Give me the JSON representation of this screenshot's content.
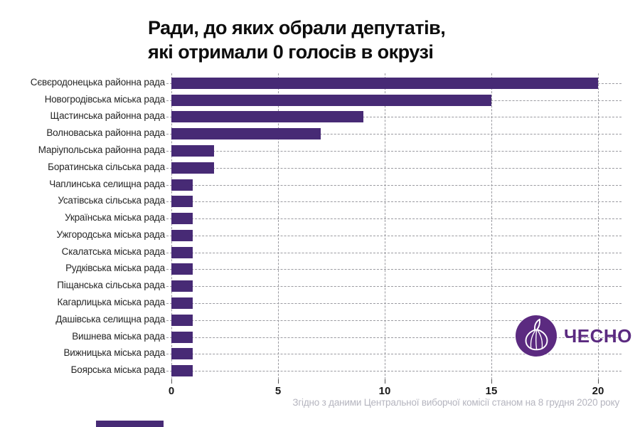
{
  "title": {
    "line1": "Ради, до яких обрали депутатів,",
    "line2": "які отримали 0 голосів в окрузі"
  },
  "chart_data": {
    "type": "bar",
    "orientation": "horizontal",
    "title": "Ради, до яких обрали депутатів, які отримали 0 голосів в окрузі",
    "categories": [
      "Сєвєродонецька районна рада",
      "Новогродівська міська рада",
      "Щастинська районна рада",
      "Волноваська районна рада",
      "Маріупольська районна рада",
      "Боратинська сільська рада",
      "Чаплинська селищна рада",
      "Усатівська сільська рада",
      "Українська міська рада",
      "Ужгородська міська рада",
      "Скалатська міська рада",
      "Рудківська міська рада",
      "Піщанська сільська рада",
      "Кагарлицька міська рада",
      "Дашівська селищна рада",
      "Вишнева міська рада",
      "Вижницька міська рада",
      "Боярська міська рада"
    ],
    "values": [
      20,
      15,
      9,
      7,
      2,
      2,
      1,
      1,
      1,
      1,
      1,
      1,
      1,
      1,
      1,
      1,
      1,
      1
    ],
    "xlim": [
      0,
      20
    ],
    "x_ticks": [
      0,
      5,
      10,
      15,
      20
    ],
    "grid": "dashed",
    "legend": "none",
    "bar_color": "#472a75"
  },
  "caption": "Згідно з даними Центральної виборчої комісії станом на 8 грудня 2020 року",
  "logo": {
    "icon": "garlic-icon",
    "text": "ЧЕСНО",
    "color": "#5b2a80"
  },
  "colors": {
    "bar": "#472a75",
    "grid": "#9a9aa0",
    "title_text": "#0d0d0d",
    "axis_text": "#191919",
    "label_text": "#262626",
    "caption_text": "#b5b5bf",
    "logo_purple": "#5b2a80",
    "background": "#ffffff"
  }
}
